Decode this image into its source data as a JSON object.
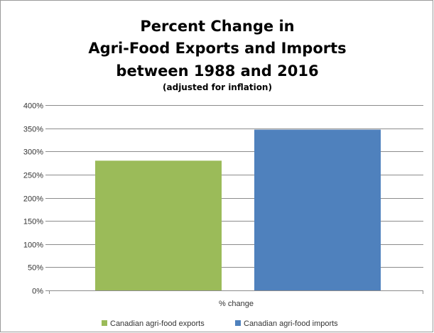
{
  "chart_data": {
    "type": "bar",
    "title": [
      "Percent Change in",
      "Agri-Food Exports and Imports",
      "between 1988 and 2016"
    ],
    "subtitle": "(adjusted for inflation)",
    "categories": [
      "% change"
    ],
    "series": [
      {
        "name": "Canadian agri-food exports",
        "values": [
          280
        ],
        "color": "#9bbb59"
      },
      {
        "name": "Canadian agri-food imports",
        "values": [
          347
        ],
        "color": "#4f81bd"
      }
    ],
    "ylim": [
      0,
      400
    ],
    "y_ticks": [
      "0%",
      "50%",
      "100%",
      "150%",
      "200%",
      "250%",
      "300%",
      "350%",
      "400%"
    ],
    "y_tick_values": [
      0,
      50,
      100,
      150,
      200,
      250,
      300,
      350,
      400
    ],
    "grid": true,
    "legend_position": "bottom",
    "xlabel": "",
    "ylabel": ""
  }
}
